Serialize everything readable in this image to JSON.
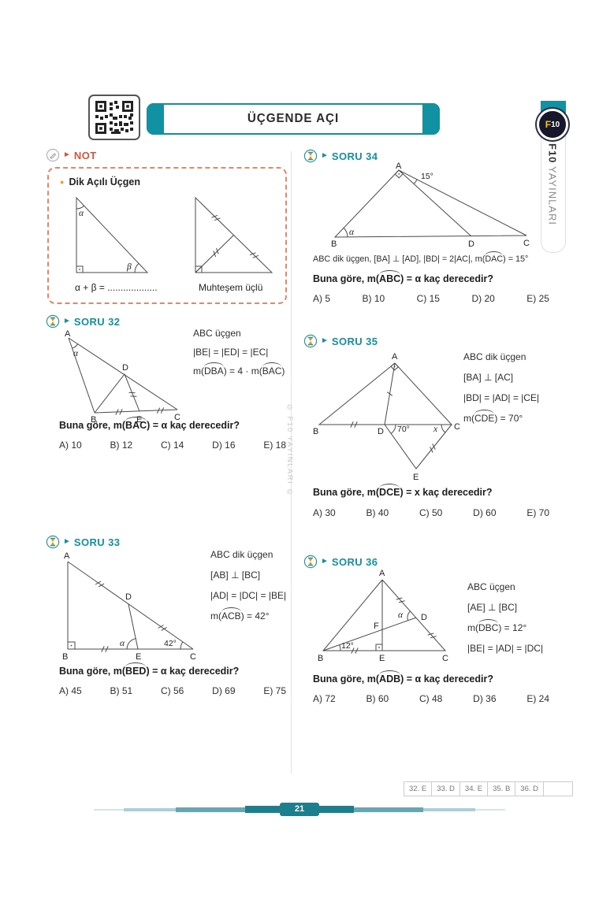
{
  "theme": {
    "teal": "#1191a2",
    "teal_dark": "#1d7e8d",
    "orange_red": "#d9543e",
    "bullet_orange": "#f0a030",
    "badge_yellow": "#f5c518",
    "diagram_stroke": "#4a4a4a",
    "red_arc": "#b03535",
    "watermark_gray": "#c9c9c9"
  },
  "icons": {
    "arrow": "►",
    "bullet": "●"
  },
  "header": {
    "title": "ÜÇGENDE AÇI"
  },
  "brand": {
    "badge_f": "F",
    "badge_num": "10",
    "vertical_bold": "F10",
    "vertical_rest": "YAYINLARI"
  },
  "note": {
    "label": "NOT",
    "heading": "Dik Açılı Üçgen",
    "alpha": "α",
    "beta": "β",
    "left_caption": "α + β = ...................",
    "right_caption": "Muhteşem üçlü"
  },
  "watermark": "© F10 YAYINLARI ©",
  "questions": {
    "q32": {
      "label": "SORU 32",
      "info": [
        "ABC üçgen",
        "|BE| = |ED| = |EC|",
        "m({DBA}) = 4 · m({BAC})"
      ],
      "question": "Buna göre, m({BAC}) = α kaç derecedir?",
      "answers": [
        "A) 10",
        "B) 12",
        "C) 14",
        "D) 16",
        "E) 18"
      ],
      "diagram": {
        "A": "A",
        "B": "B",
        "C": "C",
        "D": "D",
        "E": "E",
        "alpha": "α"
      }
    },
    "q33": {
      "label": "SORU 33",
      "info": [
        "ABC dik üçgen",
        "[AB] ⊥ [BC]",
        "|AD| = |DC| = |BE|",
        "m({ACB}) = 42°"
      ],
      "question": "Buna göre, m({BED}) = α kaç derecedir?",
      "answers": [
        "A) 45",
        "B) 51",
        "C) 56",
        "D) 69",
        "E) 75"
      ],
      "diagram": {
        "A": "A",
        "B": "B",
        "C": "C",
        "D": "D",
        "E": "E",
        "alpha": "α",
        "angle": "42°"
      }
    },
    "q34": {
      "label": "SORU 34",
      "info_line": "ABC dik üçgen,  [BA] ⊥ [AD],   |BD| = 2|AC|,   m({DAC}) = 15°",
      "question": "Buna göre, m({ABC}) = α kaç derecedir?",
      "answers": [
        "A) 5",
        "B) 10",
        "C) 15",
        "D) 20",
        "E) 25"
      ],
      "diagram": {
        "A": "A",
        "B": "B",
        "C": "C",
        "D": "D",
        "alpha": "α",
        "angle": "15°"
      }
    },
    "q35": {
      "label": "SORU 35",
      "info": [
        "ABC dik üçgen",
        "[BA] ⊥ [AC]",
        "|BD| = |AD| = |CE|",
        "m({CDE}) = 70°"
      ],
      "question": "Buna göre, m({DCE}) = x kaç derecedir?",
      "answers": [
        "A) 30",
        "B) 40",
        "C) 50",
        "D) 60",
        "E) 70"
      ],
      "diagram": {
        "A": "A",
        "B": "B",
        "C": "C",
        "D": "D",
        "E": "E",
        "angle": "70°",
        "x": "x"
      }
    },
    "q36": {
      "label": "SORU 36",
      "info": [
        "ABC üçgen",
        "[AE] ⊥ [BC]",
        "m({DBC}) = 12°",
        "|BE| = |AD| = |DC|"
      ],
      "question": "Buna göre, m({ADB}) = α kaç derecedir?",
      "answers": [
        "A) 72",
        "B) 60",
        "C) 48",
        "D) 36",
        "E) 24"
      ],
      "diagram": {
        "A": "A",
        "B": "B",
        "C": "C",
        "D": "D",
        "E": "E",
        "F": "F",
        "alpha": "α",
        "angle": "12°"
      }
    }
  },
  "answer_key": [
    "32. E",
    "33. D",
    "34. E",
    "35. B",
    "36. D",
    ""
  ],
  "footer": {
    "page": "21"
  }
}
